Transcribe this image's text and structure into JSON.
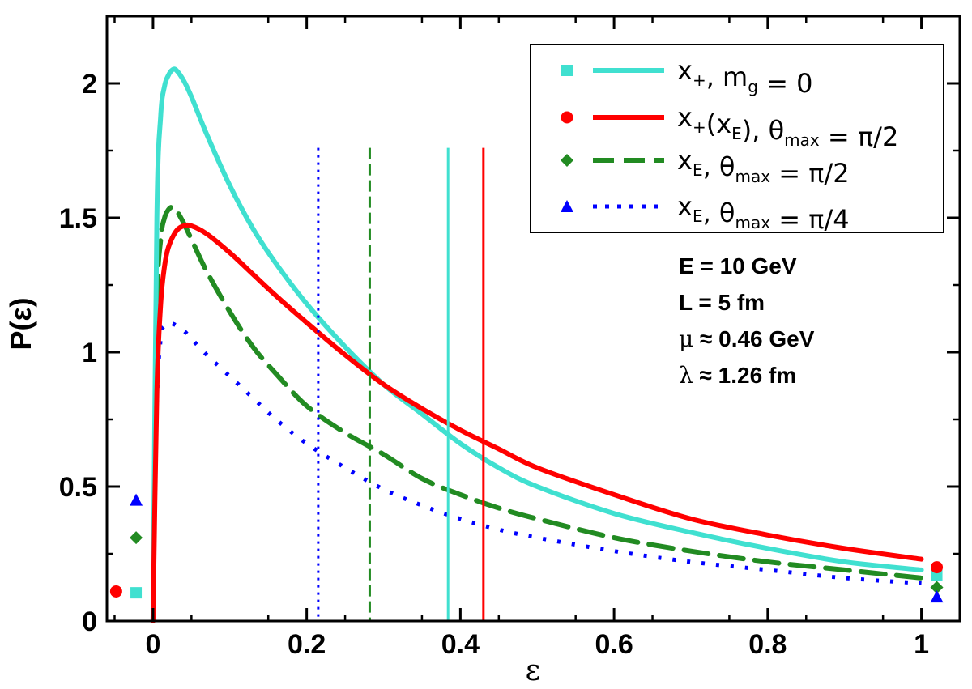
{
  "chart_data": {
    "type": "line",
    "title": "",
    "xlabel": "ε",
    "ylabel": "P(ε)",
    "xlim": [
      -0.06,
      1.05
    ],
    "ylim": [
      0,
      2.25
    ],
    "xticks": [
      0,
      0.2,
      0.4,
      0.6,
      0.8,
      1
    ],
    "xtick_labels": [
      "0",
      "0.2",
      "0.4",
      "0.6",
      "0.8",
      "1"
    ],
    "yticks": [
      0,
      0.5,
      1,
      1.5,
      2
    ],
    "ytick_labels": [
      "0",
      "0.5",
      "1",
      "1.5",
      "2"
    ],
    "grid": false,
    "legend_position": "top-right",
    "series": [
      {
        "name": "x+, mg = 0",
        "color": "#40E0D0",
        "style": "solid",
        "marker": "square",
        "x": [
          0.0,
          0.005,
          0.01,
          0.015,
          0.02,
          0.025,
          0.03,
          0.04,
          0.05,
          0.07,
          0.1,
          0.13,
          0.16,
          0.2,
          0.25,
          0.3,
          0.35,
          0.4,
          0.45,
          0.5,
          0.6,
          0.7,
          0.8,
          0.9,
          1.0
        ],
        "y": [
          0.0,
          1.5,
          1.88,
          1.99,
          2.03,
          2.05,
          2.05,
          2.01,
          1.95,
          1.81,
          1.62,
          1.46,
          1.33,
          1.18,
          1.02,
          0.88,
          0.77,
          0.66,
          0.57,
          0.5,
          0.4,
          0.33,
          0.27,
          0.22,
          0.19
        ],
        "cutoff": 0.384,
        "endpoint_markers": [
          [
            -0.022,
            0.105
          ],
          [
            1.02,
            0.17
          ]
        ]
      },
      {
        "name": "x+(xE), θmax = π/2",
        "color": "#FF0000",
        "style": "solid",
        "marker": "circle",
        "x": [
          0.0,
          0.005,
          0.01,
          0.015,
          0.02,
          0.03,
          0.04,
          0.05,
          0.07,
          0.1,
          0.13,
          0.16,
          0.2,
          0.25,
          0.3,
          0.35,
          0.4,
          0.45,
          0.5,
          0.6,
          0.7,
          0.8,
          0.9,
          1.0
        ],
        "y": [
          0.0,
          0.85,
          1.18,
          1.32,
          1.39,
          1.45,
          1.47,
          1.47,
          1.44,
          1.37,
          1.29,
          1.21,
          1.11,
          0.99,
          0.88,
          0.79,
          0.71,
          0.64,
          0.57,
          0.47,
          0.38,
          0.32,
          0.27,
          0.23
        ],
        "cutoff": 0.43,
        "endpoint_markers": [
          [
            -0.048,
            0.11
          ],
          [
            1.02,
            0.2
          ]
        ]
      },
      {
        "name": "xE, θmax = π/2",
        "color": "#228B22",
        "style": "dashed",
        "marker": "diamond",
        "x": [
          0.0,
          0.005,
          0.01,
          0.015,
          0.02,
          0.025,
          0.03,
          0.04,
          0.05,
          0.07,
          0.1,
          0.13,
          0.16,
          0.2,
          0.25,
          0.3,
          0.35,
          0.4,
          0.45,
          0.5,
          0.6,
          0.7,
          0.8,
          0.9,
          1.0
        ],
        "y": [
          0.0,
          1.15,
          1.42,
          1.5,
          1.53,
          1.54,
          1.53,
          1.48,
          1.42,
          1.3,
          1.15,
          1.02,
          0.92,
          0.8,
          0.7,
          0.62,
          0.53,
          0.47,
          0.42,
          0.38,
          0.31,
          0.26,
          0.22,
          0.19,
          0.16
        ],
        "cutoff": 0.282,
        "endpoint_markers": [
          [
            -0.022,
            0.31
          ],
          [
            1.02,
            0.125
          ]
        ]
      },
      {
        "name": "xE, θmax = π/4",
        "color": "#0000FF",
        "style": "dotted",
        "marker": "triangle",
        "x": [
          0.0,
          0.005,
          0.01,
          0.015,
          0.02,
          0.03,
          0.04,
          0.05,
          0.07,
          0.1,
          0.13,
          0.16,
          0.2,
          0.25,
          0.3,
          0.35,
          0.4,
          0.45,
          0.5,
          0.6,
          0.7,
          0.8,
          0.9,
          1.0
        ],
        "y": [
          0.0,
          0.8,
          1.05,
          1.1,
          1.11,
          1.1,
          1.08,
          1.05,
          0.99,
          0.91,
          0.83,
          0.75,
          0.66,
          0.57,
          0.49,
          0.43,
          0.38,
          0.34,
          0.31,
          0.26,
          0.22,
          0.19,
          0.16,
          0.14
        ],
        "cutoff": 0.215,
        "endpoint_markers": [
          [
            -0.022,
            0.45
          ],
          [
            1.02,
            0.09
          ]
        ]
      }
    ],
    "annotations": {
      "energy": "E = 10 GeV",
      "length": "L = 5 fm",
      "mu_symbol": "μ",
      "mu_value": " ≈ 0.46 GeV",
      "lambda_symbol": "λ",
      "lambda_value": " ≈ 1.26 fm"
    }
  },
  "legend": [
    {
      "main": "x",
      "sub": "+",
      "rest": ", m",
      "sub2": "g",
      "tail": " = 0"
    },
    {
      "main": "x",
      "sub": "+",
      "rest": "(x",
      "sub2": "E",
      "tail": "), θ",
      "sub3": "max",
      "tail2": " = π/2"
    },
    {
      "main": "x",
      "sub": "E",
      "rest": ", θ",
      "sub2": "max",
      "tail": " = π/2"
    },
    {
      "main": "x",
      "sub": "E",
      "rest": ", θ",
      "sub2": "max",
      "tail": " = π/4"
    }
  ]
}
